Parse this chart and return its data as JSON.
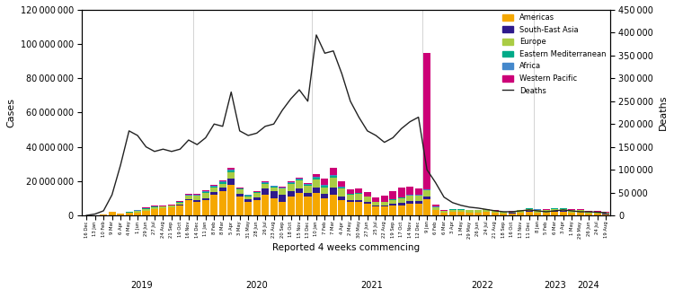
{
  "xlabel": "Reported 4 weeks commencing",
  "ylabel_left": "Cases",
  "ylabel_right": "Deaths",
  "ylim_left": [
    0,
    120000000
  ],
  "ylim_right": [
    0,
    450000
  ],
  "yticks_left": [
    0,
    20000000,
    40000000,
    60000000,
    80000000,
    100000000,
    120000000
  ],
  "yticks_right": [
    0,
    50000,
    100000,
    150000,
    200000,
    250000,
    300000,
    350000,
    400000,
    450000
  ],
  "colors": {
    "Americas": "#F5A800",
    "South-East Asia": "#2E1A8C",
    "Europe": "#AACC44",
    "Eastern Mediterranean": "#00AA88",
    "Africa": "#4488CC",
    "Western Pacific": "#CC0077",
    "Deaths": "#222222"
  },
  "tick_labels": [
    "16 Dec",
    "13 Jan",
    "10 Feb",
    "9 Mar",
    "6 Apr",
    "4 May",
    "1 Jun",
    "29 Jun",
    "27 Jul",
    "24 Aug",
    "21 Sep",
    "19 Oct",
    "16 Nov",
    "14 Dec",
    "11 Jan",
    "8 Feb",
    "8 Mar",
    "5 Apr",
    "3 May",
    "31 May",
    "28 Jun",
    "26 Jul",
    "23 Aug",
    "20 Sep",
    "18 Oct",
    "15 Nov",
    "13 Dec",
    "10 Jan",
    "7 Feb",
    "7 Mar",
    "4 Apr",
    "2 May",
    "30 May",
    "27 Jun",
    "25 Jul",
    "22 Aug",
    "19 Sep",
    "17 Oct",
    "14 Nov",
    "12 Dec",
    "9 Jan",
    "6 Feb",
    "6 Mar",
    "3 Apr",
    "1 May",
    "29 May",
    "26 Jun",
    "24 Jul",
    "21 Aug",
    "18 Sep",
    "16 Oct",
    "13 Nov",
    "11 Dec",
    "8 Jan",
    "5 Feb",
    "6 Mar",
    "3 Apr",
    "1 May",
    "29 May",
    "26 Jun",
    "24 Jul",
    "19 Aug"
  ],
  "year_labels": [
    "2019",
    "2020",
    "2021",
    "2022",
    "2023",
    "2024"
  ],
  "year_x": [
    0,
    13,
    27,
    40,
    53,
    57
  ],
  "Americas": [
    100000,
    200000,
    400000,
    2000000,
    1200000,
    1500000,
    1800000,
    2500000,
    3500000,
    4000000,
    4500000,
    6000000,
    9000000,
    8000000,
    9000000,
    12000000,
    14000000,
    18000000,
    11000000,
    8000000,
    9000000,
    12000000,
    10000000,
    8000000,
    11000000,
    13000000,
    11000000,
    13000000,
    10000000,
    12000000,
    9000000,
    8000000,
    8000000,
    7000000,
    5000000,
    5000000,
    6000000,
    6000000,
    7000000,
    7000000,
    9500000,
    3000000,
    1500000,
    2000000,
    2000000,
    1500000,
    1500000,
    2000000,
    1500000,
    1000000,
    1200000,
    1500000,
    2000000,
    1500000,
    1500000,
    2000000,
    2000000,
    1500000,
    1500000,
    1000000,
    1000000,
    800000
  ],
  "South_East_Asia": [
    0,
    0,
    0,
    0,
    0,
    0,
    0,
    100000,
    200000,
    300000,
    300000,
    400000,
    700000,
    900000,
    1200000,
    1800000,
    2000000,
    3500000,
    1500000,
    1200000,
    1500000,
    3500000,
    4000000,
    4000000,
    3000000,
    2500000,
    2000000,
    3000000,
    2500000,
    4000000,
    2000000,
    1000000,
    1000000,
    800000,
    700000,
    700000,
    1000000,
    1500000,
    1500000,
    1500000,
    1500000,
    400000,
    200000,
    200000,
    200000,
    200000,
    300000,
    300000,
    200000,
    200000,
    200000,
    300000,
    400000,
    300000,
    300000,
    400000,
    400000,
    300000,
    300000,
    300000,
    300000,
    200000
  ],
  "Europe": [
    0,
    0,
    0,
    0,
    0,
    300000,
    800000,
    1200000,
    1200000,
    800000,
    800000,
    1200000,
    1800000,
    2500000,
    3000000,
    2500000,
    2500000,
    3500000,
    2500000,
    2000000,
    2500000,
    3000000,
    2500000,
    3500000,
    4500000,
    5000000,
    4500000,
    5000000,
    4000000,
    6000000,
    4500000,
    3000000,
    3500000,
    3000000,
    2000000,
    2000000,
    2000000,
    2500000,
    3000000,
    3000000,
    3500000,
    1500000,
    800000,
    1200000,
    1200000,
    1200000,
    1200000,
    1200000,
    800000,
    800000,
    800000,
    1200000,
    1500000,
    1500000,
    1200000,
    1500000,
    1500000,
    1200000,
    1200000,
    800000,
    800000,
    600000
  ],
  "Eastern_Mediterranean": [
    0,
    0,
    0,
    0,
    80000,
    150000,
    250000,
    300000,
    200000,
    150000,
    150000,
    250000,
    300000,
    400000,
    500000,
    600000,
    700000,
    1200000,
    600000,
    400000,
    500000,
    400000,
    300000,
    400000,
    500000,
    500000,
    400000,
    1000000,
    800000,
    1200000,
    800000,
    500000,
    400000,
    300000,
    250000,
    250000,
    300000,
    300000,
    300000,
    250000,
    400000,
    80000,
    80000,
    80000,
    80000,
    80000,
    80000,
    80000,
    80000,
    80000,
    80000,
    80000,
    80000,
    80000,
    80000,
    80000,
    80000,
    80000,
    80000,
    80000,
    80000,
    80000
  ],
  "Africa": [
    0,
    0,
    0,
    0,
    30000,
    80000,
    150000,
    250000,
    250000,
    150000,
    150000,
    250000,
    300000,
    300000,
    400000,
    500000,
    600000,
    700000,
    350000,
    250000,
    350000,
    400000,
    350000,
    350000,
    400000,
    400000,
    350000,
    400000,
    300000,
    400000,
    350000,
    250000,
    250000,
    150000,
    150000,
    150000,
    150000,
    150000,
    150000,
    150000,
    150000,
    80000,
    80000,
    80000,
    80000,
    80000,
    80000,
    80000,
    80000,
    80000,
    80000,
    80000,
    80000,
    80000,
    80000,
    80000,
    80000,
    80000,
    80000,
    80000,
    80000,
    80000
  ],
  "Western_Pacific": [
    0,
    0,
    0,
    0,
    0,
    0,
    80000,
    150000,
    250000,
    150000,
    150000,
    250000,
    300000,
    400000,
    500000,
    600000,
    700000,
    800000,
    400000,
    300000,
    300000,
    400000,
    300000,
    300000,
    400000,
    500000,
    400000,
    1500000,
    4000000,
    4000000,
    3500000,
    2500000,
    2500000,
    2500000,
    2500000,
    3500000,
    4500000,
    6000000,
    5000000,
    4000000,
    80000000,
    1000000,
    500000,
    300000,
    250000,
    250000,
    250000,
    250000,
    250000,
    150000,
    150000,
    250000,
    400000,
    300000,
    300000,
    400000,
    400000,
    300000,
    300000,
    250000,
    250000,
    150000
  ],
  "Deaths": [
    0,
    3000,
    10000,
    45000,
    110000,
    185000,
    175000,
    150000,
    140000,
    145000,
    140000,
    145000,
    165000,
    155000,
    170000,
    200000,
    195000,
    270000,
    185000,
    175000,
    180000,
    195000,
    200000,
    230000,
    255000,
    275000,
    250000,
    395000,
    355000,
    360000,
    310000,
    250000,
    215000,
    185000,
    175000,
    160000,
    170000,
    190000,
    205000,
    215000,
    100000,
    72000,
    40000,
    28000,
    22000,
    18000,
    16000,
    13000,
    10000,
    8000,
    8000,
    10000,
    12000,
    10000,
    8000,
    10000,
    12000,
    10000,
    8000,
    8000,
    7000,
    6000
  ]
}
